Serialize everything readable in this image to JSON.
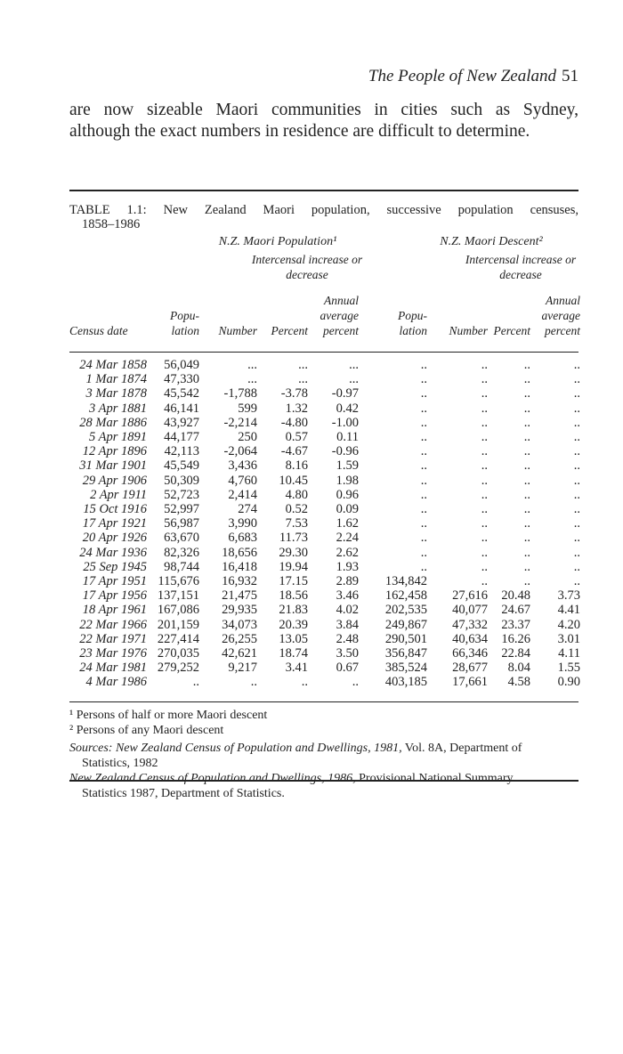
{
  "header": {
    "title": "The People of New Zealand",
    "page": "51"
  },
  "paragraph": [
    "are now sizeable Maori communities in cities such as Sydney,",
    "although the exact numbers in residence are difficult to determine."
  ],
  "table": {
    "caption": [
      "TABLE 1.1: New Zealand Maori population, successive population censuses,",
      "1858–1986"
    ],
    "groups": [
      "N.Z. Maori Population¹",
      "N.Z. Maori Descent²"
    ],
    "subgroups": [
      [
        "Intercensal increase or",
        "decrease"
      ],
      [
        "Intercensal increase or",
        "decrease"
      ]
    ],
    "columns": [
      [
        "Census date"
      ],
      [
        "Popu-",
        "lation"
      ],
      [
        "Number"
      ],
      [
        "Percent"
      ],
      [
        "Annual",
        "average",
        "percent"
      ],
      [
        "Popu-",
        "lation"
      ],
      [
        "Number"
      ],
      [
        "Percent"
      ],
      [
        "Annual",
        "average",
        "percent"
      ]
    ],
    "rows": [
      [
        "24 Mar 1858",
        "56,049",
        "...",
        "...",
        "...",
        "..",
        "..",
        "..",
        ".."
      ],
      [
        "1 Mar 1874",
        "47,330",
        "...",
        "...",
        "...",
        "..",
        "..",
        "..",
        ".."
      ],
      [
        "3 Mar 1878",
        "45,542",
        "-1,788",
        "-3.78",
        "-0.97",
        "..",
        "..",
        "..",
        ".."
      ],
      [
        "3 Apr 1881",
        "46,141",
        "599",
        "1.32",
        "0.42",
        "..",
        "..",
        "..",
        ".."
      ],
      [
        "28 Mar 1886",
        "43,927",
        "-2,214",
        "-4.80",
        "-1.00",
        "..",
        "..",
        "..",
        ".."
      ],
      [
        "5 Apr 1891",
        "44,177",
        "250",
        "0.57",
        "0.11",
        "..",
        "..",
        "..",
        ".."
      ],
      [
        "12 Apr 1896",
        "42,113",
        "-2,064",
        "-4.67",
        "-0.96",
        "..",
        "..",
        "..",
        ".."
      ],
      [
        "31 Mar 1901",
        "45,549",
        "3,436",
        "8.16",
        "1.59",
        "..",
        "..",
        "..",
        ".."
      ],
      [
        "29 Apr 1906",
        "50,309",
        "4,760",
        "10.45",
        "1.98",
        "..",
        "..",
        "..",
        ".."
      ],
      [
        "2 Apr 1911",
        "52,723",
        "2,414",
        "4.80",
        "0.96",
        "..",
        "..",
        "..",
        ".."
      ],
      [
        "15 Oct 1916",
        "52,997",
        "274",
        "0.52",
        "0.09",
        "..",
        "..",
        "..",
        ".."
      ],
      [
        "17 Apr 1921",
        "56,987",
        "3,990",
        "7.53",
        "1.62",
        "..",
        "..",
        "..",
        ".."
      ],
      [
        "20 Apr 1926",
        "63,670",
        "6,683",
        "11.73",
        "2.24",
        "..",
        "..",
        "..",
        ".."
      ],
      [
        "24 Mar 1936",
        "82,326",
        "18,656",
        "29.30",
        "2.62",
        "..",
        "..",
        "..",
        ".."
      ],
      [
        "25 Sep 1945",
        "98,744",
        "16,418",
        "19.94",
        "1.93",
        "..",
        "..",
        "..",
        ".."
      ],
      [
        "17 Apr 1951",
        "115,676",
        "16,932",
        "17.15",
        "2.89",
        "134,842",
        "..",
        "..",
        ".."
      ],
      [
        "17 Apr 1956",
        "137,151",
        "21,475",
        "18.56",
        "3.46",
        "162,458",
        "27,616",
        "20.48",
        "3.73"
      ],
      [
        "18 Apr 1961",
        "167,086",
        "29,935",
        "21.83",
        "4.02",
        "202,535",
        "40,077",
        "24.67",
        "4.41"
      ],
      [
        "22 Mar 1966",
        "201,159",
        "34,073",
        "20.39",
        "3.84",
        "249,867",
        "47,332",
        "23.37",
        "4.20"
      ],
      [
        "22 Mar 1971",
        "227,414",
        "26,255",
        "13.05",
        "2.48",
        "290,501",
        "40,634",
        "16.26",
        "3.01"
      ],
      [
        "23 Mar 1976",
        "270,035",
        "42,621",
        "18.74",
        "3.50",
        "356,847",
        "66,346",
        "22.84",
        "4.11"
      ],
      [
        "24 Mar 1981",
        "279,252",
        "9,217",
        "3.41",
        "0.67",
        "385,524",
        "28,677",
        "8.04",
        "1.55"
      ],
      [
        "4 Mar 1986",
        "..",
        "..",
        "..",
        "..",
        "403,185",
        "17,661",
        "4.58",
        "0.90"
      ]
    ],
    "footnotes": [
      "¹ Persons of half or more Maori descent",
      "² Persons of any Maori descent"
    ],
    "sources": [
      {
        "label": "Sources: ",
        "title": "New Zealand Census of Population and Dwellings, 1981,",
        "rest": " Vol. 8A, Department of",
        "rest2": "Statistics, 1982"
      },
      {
        "label": "",
        "title": "New Zealand Census of Population and Dwellings, 1986,",
        "rest": " Provisional National Summary",
        "rest2": "Statistics 1987, Department of Statistics."
      }
    ]
  }
}
